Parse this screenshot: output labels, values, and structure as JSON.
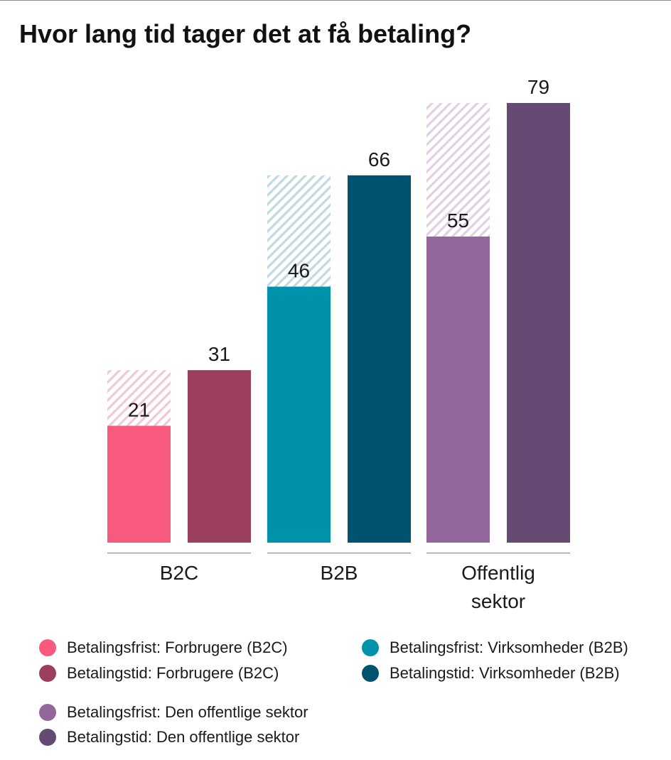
{
  "title": "Hvor lang tid tager det at få betaling?",
  "colors": {
    "b2c_frist": "#f75a7d",
    "b2c_tid": "#9c3f5f",
    "b2b_frist": "#0092ab",
    "b2b_tid": "#00536e",
    "off_frist": "#93679c",
    "off_tid": "#654a74",
    "hatch_b2c": "#f2c9d0",
    "hatch_b2b": "#bfdbe0",
    "hatch_off": "#e3cfe4",
    "axis": "#8c8c8c"
  },
  "chart_data": {
    "type": "bar",
    "title": "Hvor lang tid tager det at få betaling?",
    "categories": [
      "B2C",
      "B2B",
      "Offentlig sektor"
    ],
    "category_lines": [
      [
        "B2C"
      ],
      [
        "B2B"
      ],
      [
        "Offentlig",
        "sektor"
      ]
    ],
    "groups": [
      {
        "category": "B2C",
        "bars": [
          {
            "series": "Betalingsfrist: Forbrugere (B2C)",
            "value": 21,
            "color": "#f75a7d",
            "hatch_to": 31,
            "hatch_color": "#f2c9d0"
          },
          {
            "series": "Betalingstid: Forbrugere (B2C)",
            "value": 31,
            "color": "#9c3f5f"
          }
        ]
      },
      {
        "category": "B2B",
        "bars": [
          {
            "series": "Betalingsfrist: Virksomheder (B2B)",
            "value": 46,
            "color": "#0092ab",
            "hatch_to": 66,
            "hatch_color": "#bfdbe0"
          },
          {
            "series": "Betalingstid: Virksomheder (B2B)",
            "value": 66,
            "color": "#00536e"
          }
        ]
      },
      {
        "category": "Offentlig sektor",
        "bars": [
          {
            "series": "Betalingsfrist: Den offentlige sektor",
            "value": 55,
            "color": "#93679c",
            "hatch_to": 79,
            "hatch_color": "#e3cfe4"
          },
          {
            "series": "Betalingstid: Den offentlige sektor",
            "value": 79,
            "color": "#654a74"
          }
        ]
      }
    ],
    "ylim": [
      0,
      79
    ],
    "grid": false,
    "legend_position": "bottom"
  },
  "legend": [
    {
      "label": "Betalingsfrist: Forbrugere (B2C)",
      "color": "#f75a7d"
    },
    {
      "label": "Betalingstid: Forbrugere (B2C)",
      "color": "#9c3f5f"
    },
    {
      "label": "Betalingsfrist: Virksomheder (B2B)",
      "color": "#0092ab"
    },
    {
      "label": "Betalingstid: Virksomheder (B2B)",
      "color": "#00536e"
    },
    {
      "label": "Betalingsfrist: Den offentlige sektor",
      "color": "#93679c"
    },
    {
      "label": "Betalingstid: Den offentlige sektor",
      "color": "#654a74"
    }
  ]
}
